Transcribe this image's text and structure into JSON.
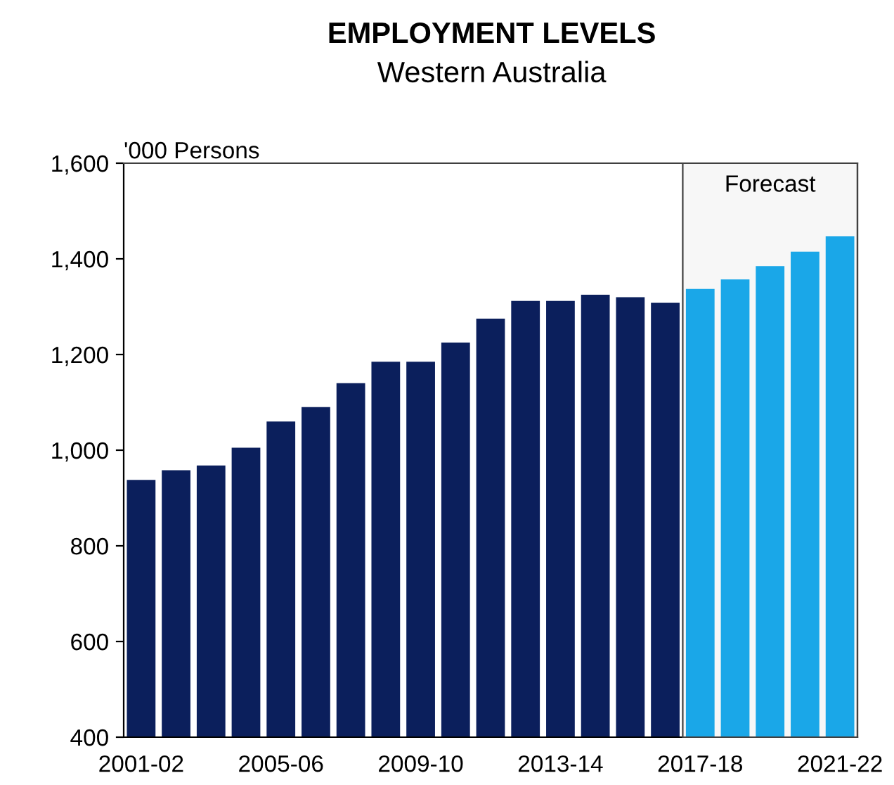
{
  "chart_data": {
    "type": "bar",
    "title": "EMPLOYMENT LEVELS",
    "subtitle": "Western Australia",
    "ylabel": "'000 Persons",
    "categories": [
      "2001-02",
      null,
      null,
      null,
      "2005-06",
      null,
      null,
      null,
      "2009-10",
      null,
      null,
      null,
      "2013-14",
      null,
      null,
      null,
      "2017-18",
      null,
      null,
      null,
      "2021-22"
    ],
    "values": [
      938,
      958,
      968,
      1005,
      1060,
      1090,
      1140,
      1185,
      1185,
      1225,
      1275,
      1312,
      1312,
      1325,
      1320,
      1308,
      1337,
      1357,
      1385,
      1415,
      1447
    ],
    "colors": [
      "#0b1f5c",
      "#0b1f5c",
      "#0b1f5c",
      "#0b1f5c",
      "#0b1f5c",
      "#0b1f5c",
      "#0b1f5c",
      "#0b1f5c",
      "#0b1f5c",
      "#0b1f5c",
      "#0b1f5c",
      "#0b1f5c",
      "#0b1f5c",
      "#0b1f5c",
      "#0b1f5c",
      "#0b1f5c",
      "#1aa7e8",
      "#1aa7e8",
      "#1aa7e8",
      "#1aa7e8",
      "#1aa7e8"
    ],
    "ylim": [
      400,
      1600
    ],
    "yticks": [
      {
        "value": 400,
        "label": "400"
      },
      {
        "value": 600,
        "label": "600"
      },
      {
        "value": 800,
        "label": "800"
      },
      {
        "value": 1000,
        "label": "1,000"
      },
      {
        "value": 1200,
        "label": "1,200"
      },
      {
        "value": 1400,
        "label": "1,400"
      },
      {
        "value": 1600,
        "label": "1,600"
      }
    ],
    "bands": [
      {
        "axis": "x",
        "from": "2017-18",
        "to": "2021-22",
        "label": "Forecast",
        "color": "#f7f7f7"
      }
    ],
    "grid": false,
    "legend": false
  }
}
